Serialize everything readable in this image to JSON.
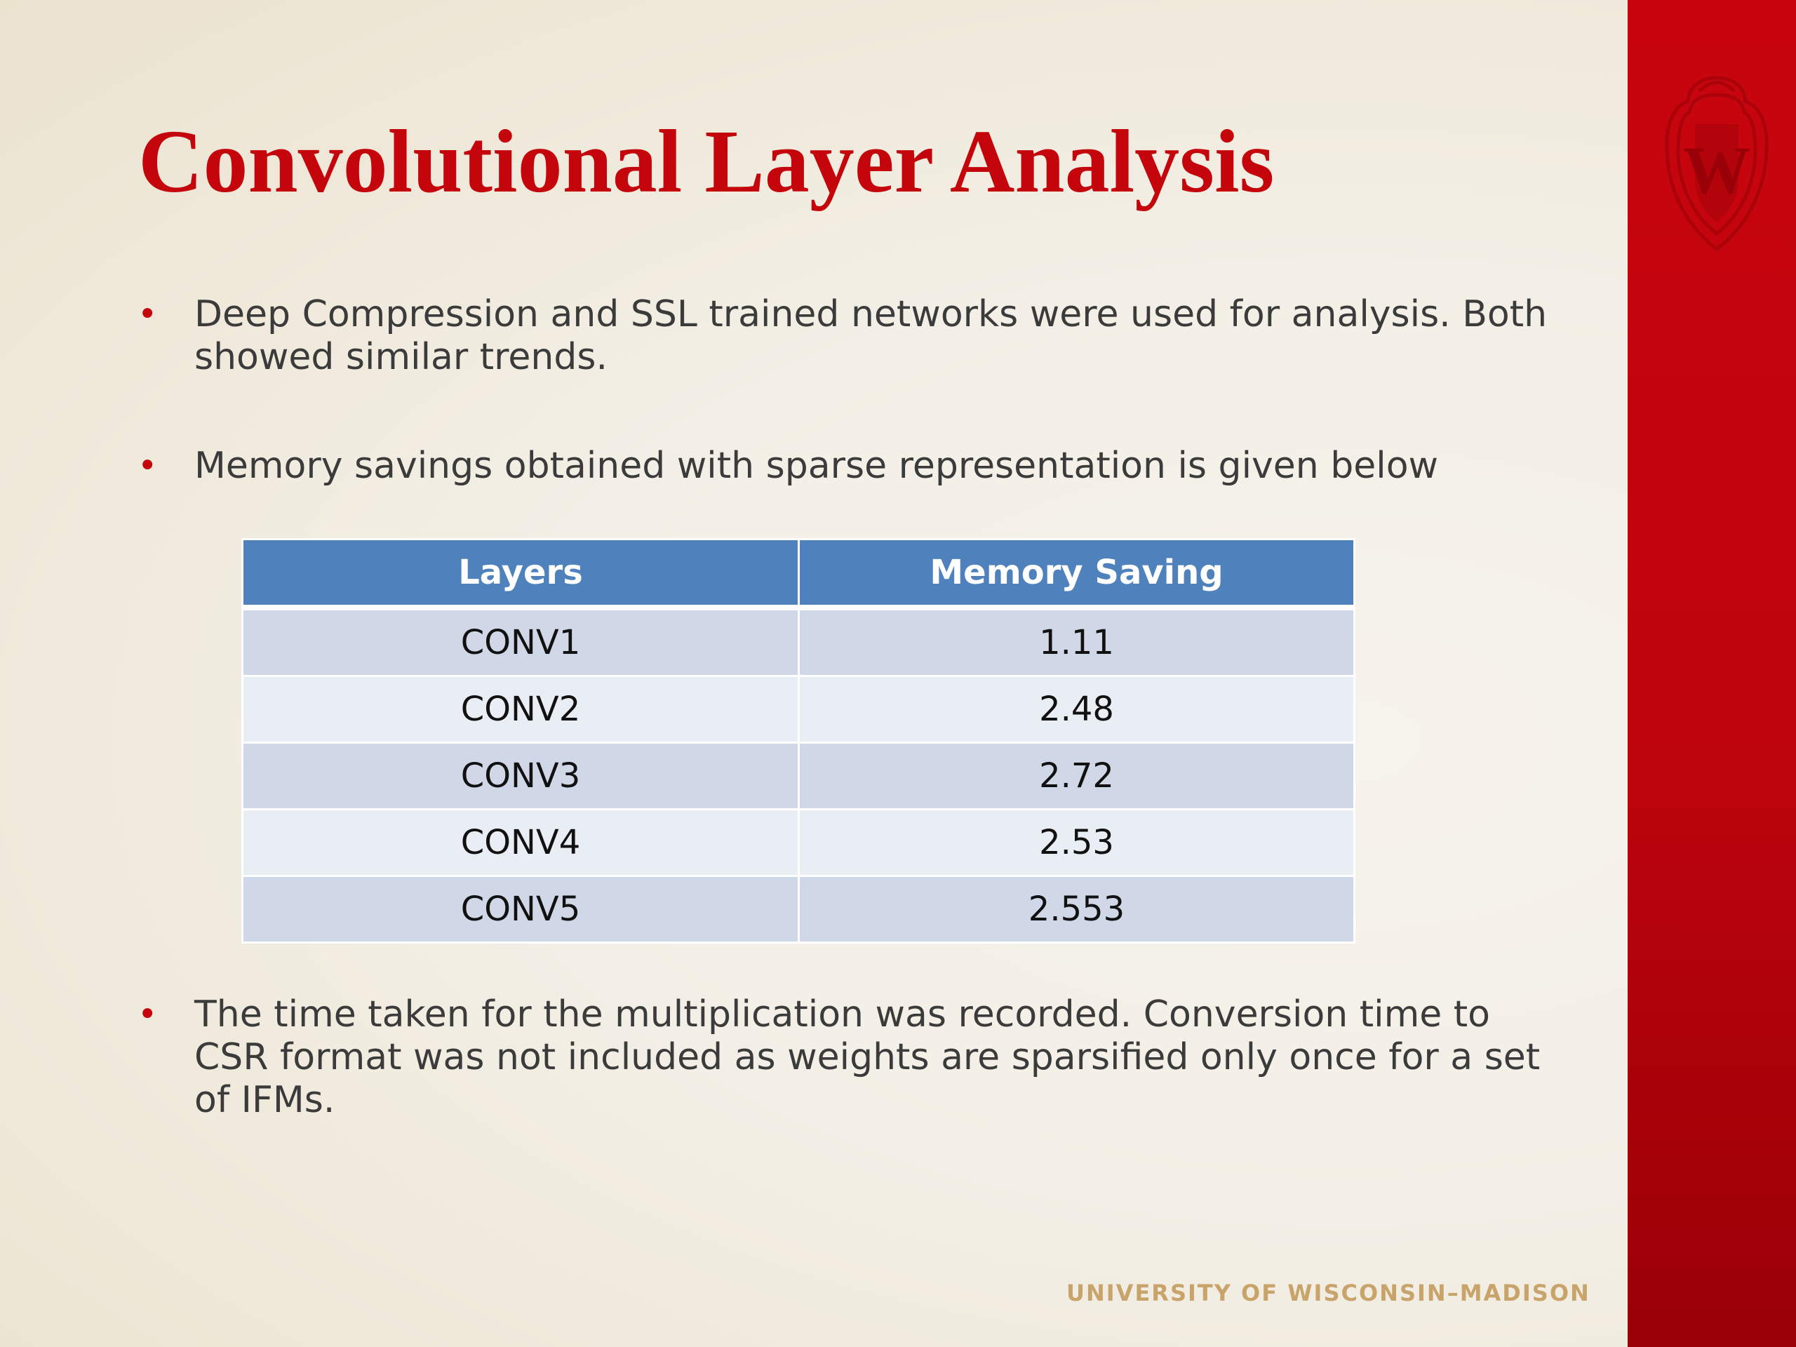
{
  "slide": {
    "title": "Convolutional Layer Analysis",
    "bullets": [
      "Deep Compression and SSL trained networks were used for analysis. Both showed similar trends.",
      "Memory savings obtained with sparse representation is given below",
      "The time taken for the multiplication was recorded. Conversion time to CSR format was not included as weights are sparsified only once for a set of IFMs."
    ],
    "bullet_glyph": "•",
    "footer": "UNIVERSITY OF WISCONSIN–MADISON",
    "crest_letter": "W",
    "colors": {
      "accent_red": "#c5050c",
      "table_header": "#4f81bd",
      "row_odd": "#d0d8e8",
      "row_even": "#e9edf4",
      "footer_gold": "#c8a46a"
    }
  },
  "table": {
    "headers": [
      "Layers",
      "Memory Saving"
    ],
    "rows": [
      [
        "CONV1",
        "1.11"
      ],
      [
        "CONV2",
        "2.48"
      ],
      [
        "CONV3",
        "2.72"
      ],
      [
        "CONV4",
        "2.53"
      ],
      [
        "CONV5",
        "2.553"
      ]
    ]
  }
}
